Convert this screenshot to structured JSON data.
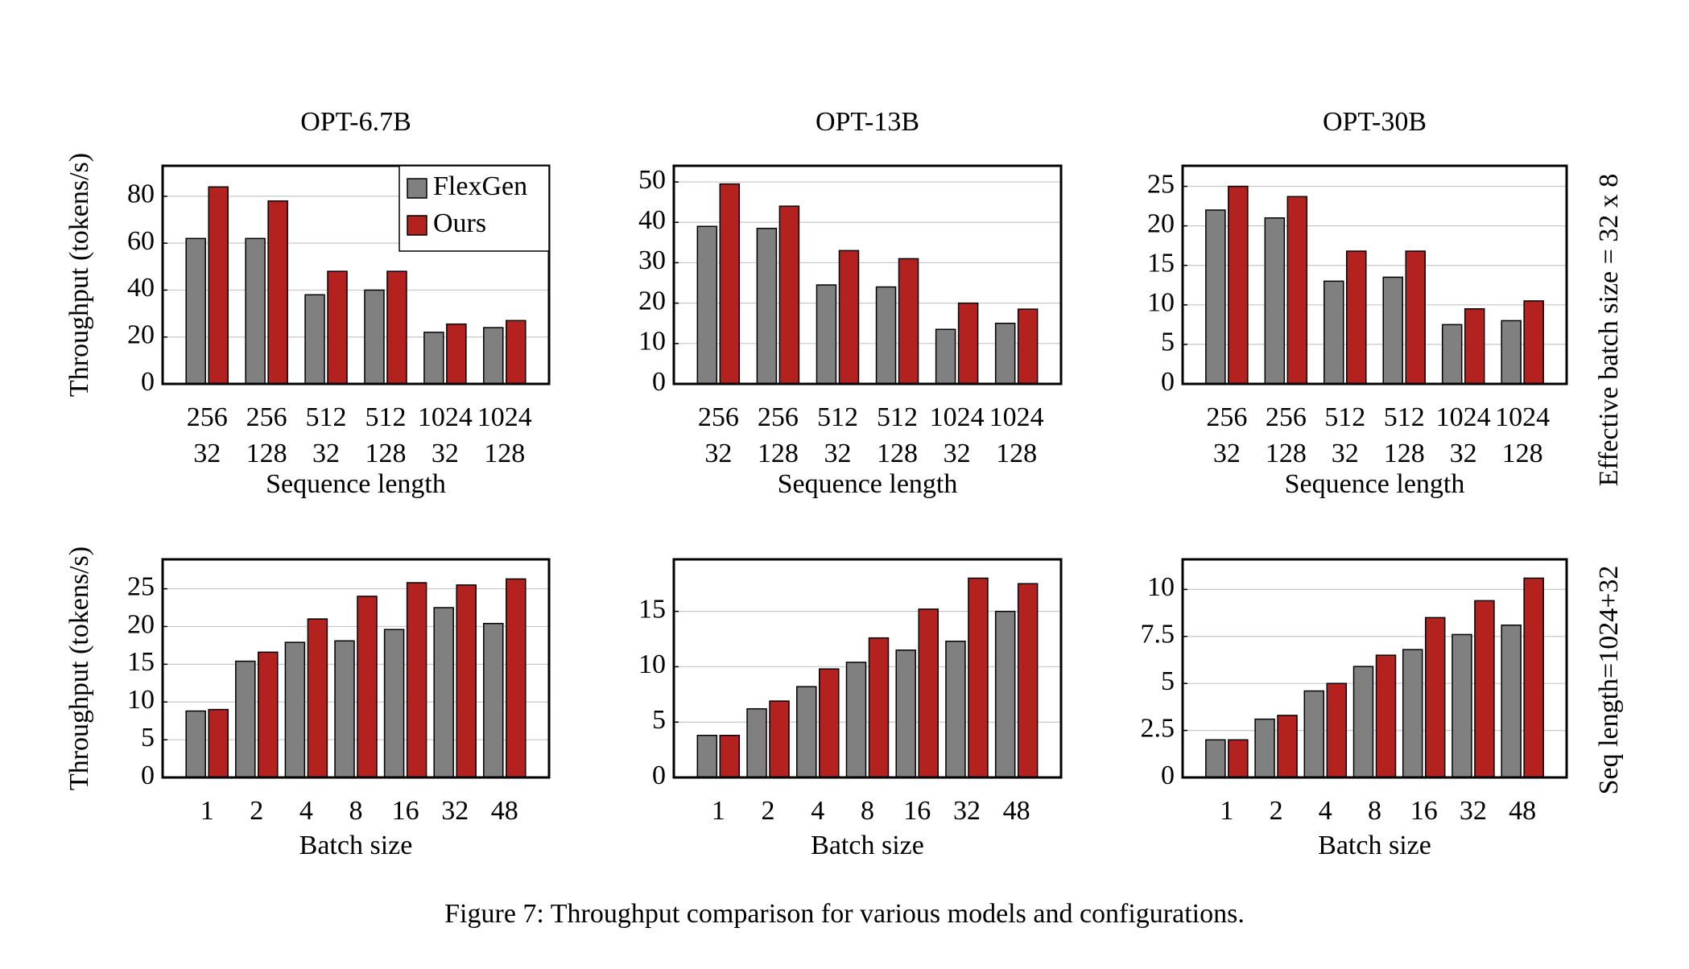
{
  "caption": "Figure 7: Throughput comparison for various models and configurations.",
  "row_labels": [
    "Effective batch size = 32 x 8",
    "Seq length=1024+32"
  ],
  "chart_data": [
    {
      "type": "bar",
      "title": "OPT-6.7B",
      "ylabel": "Throughput (tokens/s)",
      "xlabel": "Sequence length",
      "categories": [
        [
          "256",
          "32"
        ],
        [
          "256",
          "128"
        ],
        [
          "512",
          "32"
        ],
        [
          "512",
          "128"
        ],
        [
          "1024",
          "32"
        ],
        [
          "1024",
          "128"
        ]
      ],
      "series": [
        {
          "name": "FlexGen",
          "color": "#808080",
          "values": [
            62,
            62,
            38,
            40,
            22,
            24
          ]
        },
        {
          "name": "Ours",
          "color": "#b3221e",
          "values": [
            84,
            78,
            48,
            48,
            25.5,
            27
          ]
        }
      ],
      "ylim": [
        0,
        93
      ],
      "yticks": [
        0,
        20,
        40,
        60,
        80
      ],
      "grid": true,
      "legend": "upper right"
    },
    {
      "type": "bar",
      "title": "OPT-13B",
      "xlabel": "Sequence length",
      "categories": [
        [
          "256",
          "32"
        ],
        [
          "256",
          "128"
        ],
        [
          "512",
          "32"
        ],
        [
          "512",
          "128"
        ],
        [
          "1024",
          "32"
        ],
        [
          "1024",
          "128"
        ]
      ],
      "series": [
        {
          "name": "FlexGen",
          "color": "#808080",
          "values": [
            39,
            38.5,
            24.5,
            24,
            13.5,
            15
          ]
        },
        {
          "name": "Ours",
          "color": "#b3221e",
          "values": [
            49.5,
            44,
            33,
            31,
            20,
            18.5
          ]
        }
      ],
      "ylim": [
        0,
        54
      ],
      "yticks": [
        0,
        10,
        20,
        30,
        40,
        50
      ],
      "grid": true
    },
    {
      "type": "bar",
      "title": "OPT-30B",
      "xlabel": "Sequence length",
      "categories": [
        [
          "256",
          "32"
        ],
        [
          "256",
          "128"
        ],
        [
          "512",
          "32"
        ],
        [
          "512",
          "128"
        ],
        [
          "1024",
          "32"
        ],
        [
          "1024",
          "128"
        ]
      ],
      "series": [
        {
          "name": "FlexGen",
          "color": "#808080",
          "values": [
            22,
            21,
            13,
            13.5,
            7.5,
            8
          ]
        },
        {
          "name": "Ours",
          "color": "#b3221e",
          "values": [
            25,
            23.7,
            16.8,
            16.8,
            9.5,
            10.5
          ]
        }
      ],
      "ylim": [
        0,
        27.6
      ],
      "yticks": [
        0,
        5,
        10,
        15,
        20,
        25
      ],
      "grid": true
    },
    {
      "type": "bar",
      "ylabel": "Throughput (tokens/s)",
      "xlabel": "Batch size",
      "categories": [
        "1",
        "2",
        "4",
        "8",
        "16",
        "32",
        "48"
      ],
      "series": [
        {
          "name": "FlexGen",
          "color": "#808080",
          "values": [
            8.8,
            15.4,
            17.9,
            18.1,
            19.6,
            22.5,
            20.4
          ]
        },
        {
          "name": "Ours",
          "color": "#b3221e",
          "values": [
            9,
            16.6,
            21,
            24,
            25.8,
            25.5,
            26.3
          ]
        }
      ],
      "ylim": [
        0,
        28.9
      ],
      "yticks": [
        0,
        5,
        10,
        15,
        20,
        25
      ],
      "grid": true
    },
    {
      "type": "bar",
      "xlabel": "Batch size",
      "categories": [
        "1",
        "2",
        "4",
        "8",
        "16",
        "32",
        "48"
      ],
      "series": [
        {
          "name": "FlexGen",
          "color": "#808080",
          "values": [
            3.8,
            6.2,
            8.2,
            10.4,
            11.5,
            12.3,
            15
          ]
        },
        {
          "name": "Ours",
          "color": "#b3221e",
          "values": [
            3.8,
            6.9,
            9.8,
            12.6,
            15.2,
            18,
            17.5
          ]
        }
      ],
      "ylim": [
        0,
        19.7
      ],
      "yticks": [
        0,
        5,
        10,
        15
      ],
      "grid": true
    },
    {
      "type": "bar",
      "xlabel": "Batch size",
      "categories": [
        "1",
        "2",
        "4",
        "8",
        "16",
        "32",
        "48"
      ],
      "series": [
        {
          "name": "FlexGen",
          "color": "#808080",
          "values": [
            2,
            3.1,
            4.6,
            5.9,
            6.8,
            7.6,
            8.1
          ]
        },
        {
          "name": "Ours",
          "color": "#b3221e",
          "values": [
            2,
            3.3,
            5,
            6.5,
            8.5,
            9.4,
            10.6
          ]
        }
      ],
      "ylim": [
        0,
        11.6
      ],
      "yticks": [
        0,
        2.5,
        5,
        7.5,
        10
      ],
      "grid": true
    }
  ]
}
